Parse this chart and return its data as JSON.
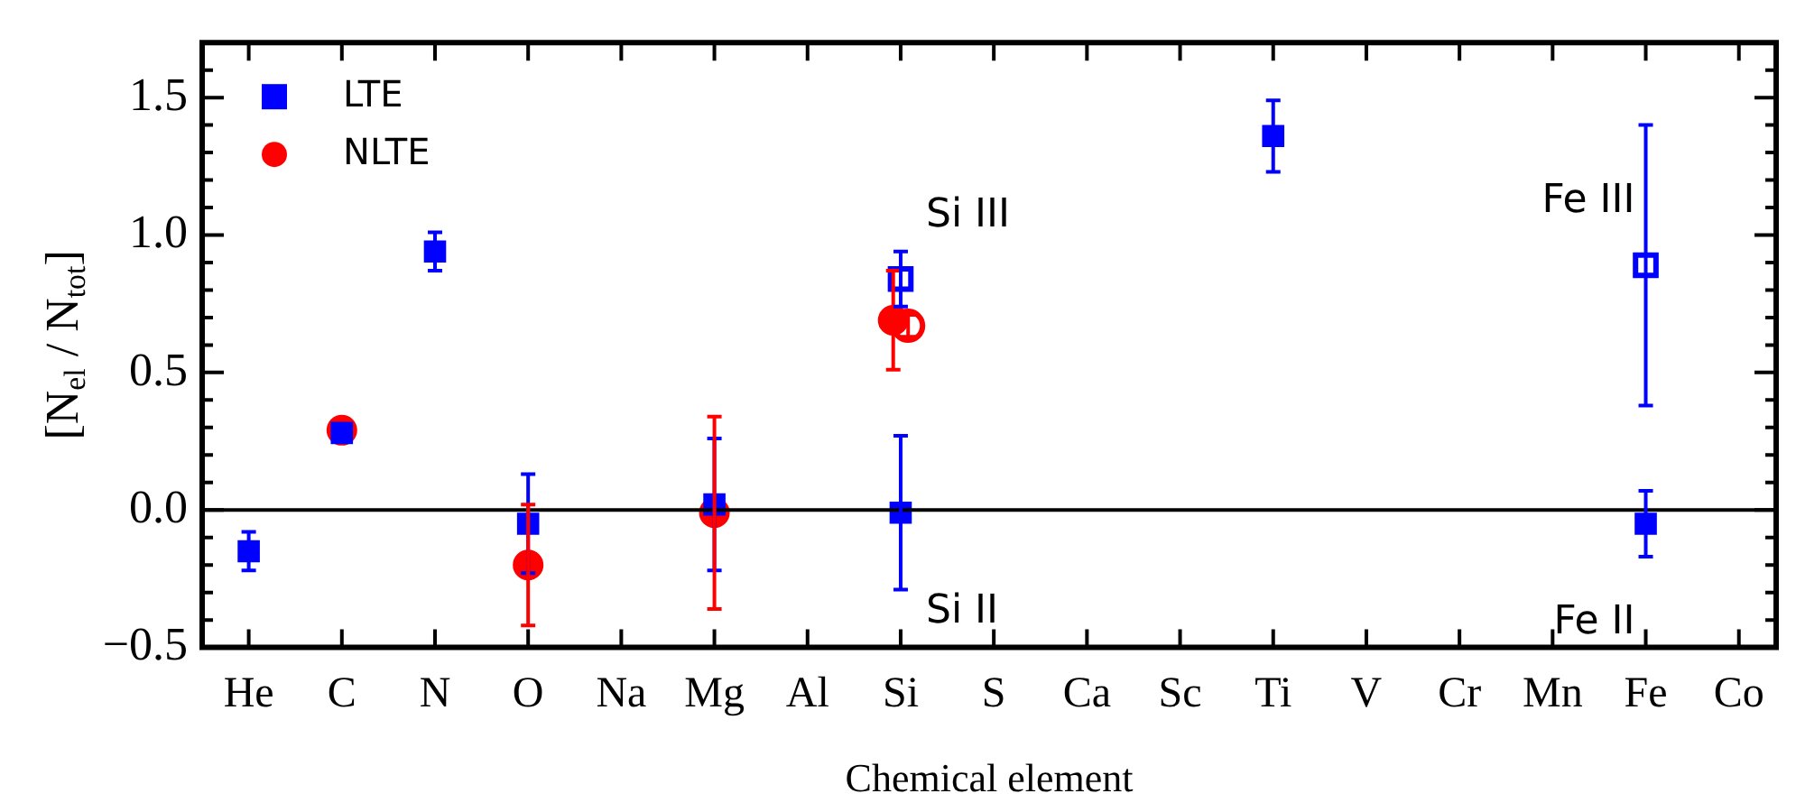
{
  "chart_data": {
    "type": "scatter",
    "xlabel": "Chemical element",
    "ylabel": "[N$_{el}$ / N$_{tot}$]",
    "categories": [
      "He",
      "C",
      "N",
      "O",
      "Na",
      "Mg",
      "Al",
      "Si",
      "S",
      "Ca",
      "Sc",
      "Ti",
      "V",
      "Cr",
      "Mn",
      "Fe",
      "Co"
    ],
    "ylim": [
      -0.5,
      1.7
    ],
    "yticks": [
      {
        "value": -0.5,
        "label": "−0.5"
      },
      {
        "value": -0.4,
        "label": null
      },
      {
        "value": -0.3,
        "label": null
      },
      {
        "value": -0.2,
        "label": null
      },
      {
        "value": -0.1,
        "label": null
      },
      {
        "value": 0,
        "label": "0.0"
      },
      {
        "value": 0.1,
        "label": null
      },
      {
        "value": 0.2,
        "label": null
      },
      {
        "value": 0.3,
        "label": null
      },
      {
        "value": 0.4,
        "label": null
      },
      {
        "value": 0.5,
        "label": "0.5"
      },
      {
        "value": 0.6,
        "label": null
      },
      {
        "value": 0.7,
        "label": null
      },
      {
        "value": 0.8,
        "label": null
      },
      {
        "value": 0.9,
        "label": null
      },
      {
        "value": 1,
        "label": "1.0"
      },
      {
        "value": 1.1,
        "label": null
      },
      {
        "value": 1.2,
        "label": null
      },
      {
        "value": 1.3,
        "label": null
      },
      {
        "value": 1.4,
        "label": null
      },
      {
        "value": 1.5,
        "label": "1.5"
      },
      {
        "value": 1.6,
        "label": null
      },
      {
        "value": 1.7,
        "label": null
      }
    ],
    "series": [
      {
        "name": "LTE",
        "color": "#0000ff",
        "marker": "square",
        "x": [
          "He",
          "C",
          "N",
          "O",
          "Mg",
          "Si",
          "Ti",
          "Fe"
        ],
        "values": [
          -0.15,
          0.28,
          0.94,
          -0.05,
          0.02,
          -0.01,
          1.36,
          -0.05
        ],
        "errors": [
          0.07,
          null,
          0.07,
          0.18,
          0.24,
          0.28,
          0.13,
          0.12
        ]
      },
      {
        "name": "NLTE",
        "color": "#ff0000",
        "marker": "circle",
        "x": [
          "C",
          "O",
          "Mg",
          "Si"
        ],
        "values": [
          0.29,
          -0.2,
          -0.01,
          0.69
        ],
        "errors": [
          null,
          0.22,
          0.35,
          0.18
        ]
      },
      {
        "color": "#0000ff",
        "marker": "square-open",
        "x": [
          "Si",
          "Fe"
        ],
        "values": [
          0.84,
          0.89
        ],
        "errors": [
          0.1,
          0.51
        ]
      },
      {
        "color": "#ff0000",
        "marker": "circle-open",
        "x": [
          "Si"
        ],
        "values": [
          0.67
        ],
        "errors": [
          0.04
        ]
      }
    ],
    "annotations": [
      {
        "text": "Si III",
        "x": "Si",
        "y": 0.84
      },
      {
        "text": "Si II",
        "x": "Si",
        "y": -0.01
      },
      {
        "text": "Fe III",
        "x": "Fe",
        "y": 0.89
      },
      {
        "text": "Fe II",
        "x": "Fe",
        "y": -0.05
      }
    ],
    "ref_lines": [
      {
        "axis": "y",
        "value": 0,
        "color": "#000000"
      }
    ],
    "grid": false,
    "legend": "top left"
  }
}
